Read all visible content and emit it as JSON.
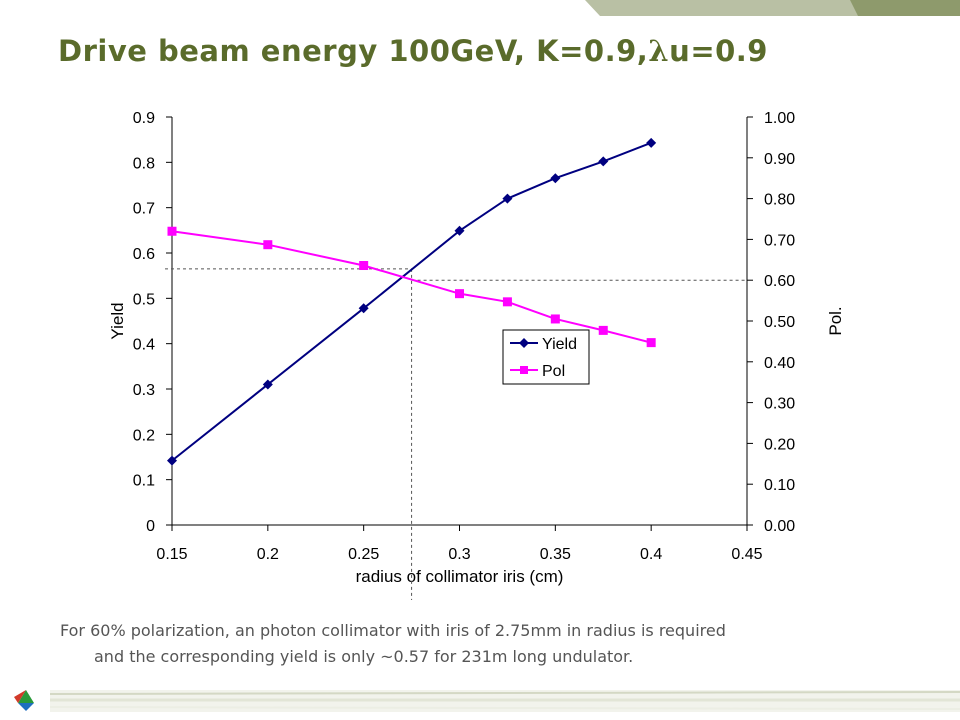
{
  "slide": {
    "title_main": "Drive beam energy 100GeV, K=0.9,",
    "title_lambda": "λ",
    "title_rest": "u=0.9",
    "caption_line1": "For 60% polarization, an photon collimator with iris of 2.75mm in radius is required",
    "caption_line2": "and the corresponding yield is only ~0.57 for 231m long undulator."
  },
  "chart_data": {
    "type": "line",
    "title": "",
    "xlabel": "radius of collimator iris (cm)",
    "ylabel": "Yield",
    "y2label": "Pol.",
    "xlim": [
      0.15,
      0.45
    ],
    "ylim": [
      0,
      0.9
    ],
    "y2lim": [
      0,
      1.0
    ],
    "xticks": [
      "0.15",
      "0.2",
      "0.25",
      "0.3",
      "0.35",
      "0.4",
      "0.45"
    ],
    "yticks": [
      "0",
      "0.1",
      "0.2",
      "0.3",
      "0.4",
      "0.5",
      "0.6",
      "0.7",
      "0.8",
      "0.9"
    ],
    "y2ticks": [
      "0.00",
      "0.10",
      "0.20",
      "0.30",
      "0.40",
      "0.50",
      "0.60",
      "0.70",
      "0.80",
      "0.90",
      "1.00"
    ],
    "grid": false,
    "legend_position": "center-right",
    "series": [
      {
        "name": "Yield",
        "axis": "left",
        "color": "#000080",
        "marker": "diamond",
        "x": [
          0.15,
          0.2,
          0.25,
          0.3,
          0.325,
          0.35,
          0.375,
          0.4
        ],
        "values": [
          0.142,
          0.31,
          0.478,
          0.649,
          0.72,
          0.765,
          0.802,
          0.843
        ]
      },
      {
        "name": "Pol",
        "axis": "right",
        "color": "#ff00ff",
        "marker": "square",
        "x": [
          0.15,
          0.2,
          0.25,
          0.3,
          0.325,
          0.35,
          0.375,
          0.4
        ],
        "values": [
          0.72,
          0.687,
          0.636,
          0.567,
          0.547,
          0.505,
          0.477,
          0.447
        ]
      }
    ],
    "reference_lines": [
      {
        "axis": "left",
        "y": 0.565,
        "from_x": 0.15
      },
      {
        "axis": "right",
        "y": 0.6,
        "to_x": 0.45
      },
      {
        "x": 0.275
      }
    ]
  }
}
